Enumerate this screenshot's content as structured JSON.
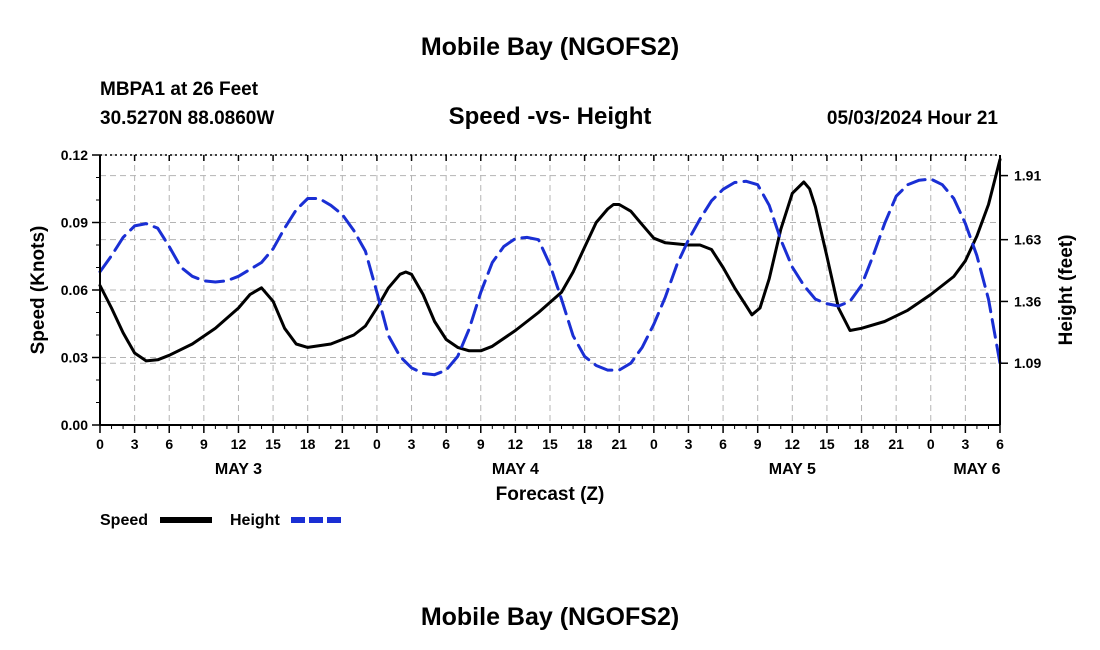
{
  "page": {
    "title": "Mobile Bay (NGOFS2)",
    "footer_title": "Mobile Bay (NGOFS2)",
    "station": "MBPA1 at 26 Feet",
    "coords": "30.5270N  88.0860W",
    "date": "05/03/2024 Hour 21"
  },
  "chart_data": {
    "type": "line",
    "title": "Speed -vs- Height",
    "xlabel": "Forecast (Z)",
    "ylabel": "Speed (Knots)",
    "y2label": "Height (feet)",
    "x_unit": "forecast hour from 00Z May 3",
    "xlim": [
      0,
      78
    ],
    "ylim": [
      0,
      0.12
    ],
    "y2lim": [
      0.82,
      2.0
    ],
    "x_ticks": [
      {
        "x": 0,
        "label": "0"
      },
      {
        "x": 3,
        "label": "3"
      },
      {
        "x": 6,
        "label": "6"
      },
      {
        "x": 9,
        "label": "9"
      },
      {
        "x": 12,
        "label": "12"
      },
      {
        "x": 15,
        "label": "15"
      },
      {
        "x": 18,
        "label": "18"
      },
      {
        "x": 21,
        "label": "21"
      },
      {
        "x": 24,
        "label": "0"
      },
      {
        "x": 27,
        "label": "3"
      },
      {
        "x": 30,
        "label": "6"
      },
      {
        "x": 33,
        "label": "9"
      },
      {
        "x": 36,
        "label": "12"
      },
      {
        "x": 39,
        "label": "15"
      },
      {
        "x": 42,
        "label": "18"
      },
      {
        "x": 45,
        "label": "21"
      },
      {
        "x": 48,
        "label": "0"
      },
      {
        "x": 51,
        "label": "3"
      },
      {
        "x": 54,
        "label": "6"
      },
      {
        "x": 57,
        "label": "9"
      },
      {
        "x": 60,
        "label": "12"
      },
      {
        "x": 63,
        "label": "15"
      },
      {
        "x": 66,
        "label": "18"
      },
      {
        "x": 69,
        "label": "21"
      },
      {
        "x": 72,
        "label": "0"
      },
      {
        "x": 75,
        "label": "3"
      },
      {
        "x": 78,
        "label": "6"
      }
    ],
    "day_labels": [
      {
        "x": 12,
        "label": "MAY 3"
      },
      {
        "x": 36,
        "label": "MAY 4"
      },
      {
        "x": 60,
        "label": "MAY 5"
      },
      {
        "x": 76,
        "label": "MAY 6"
      }
    ],
    "y_ticks": [
      {
        "v": 0.0,
        "label": "0.00"
      },
      {
        "v": 0.03,
        "label": "0.03"
      },
      {
        "v": 0.06,
        "label": "0.06"
      },
      {
        "v": 0.09,
        "label": "0.09"
      },
      {
        "v": 0.12,
        "label": "0.12"
      }
    ],
    "y2_ticks": [
      {
        "v": 1.09,
        "label": "1.09"
      },
      {
        "v": 1.36,
        "label": "1.36"
      },
      {
        "v": 1.63,
        "label": "1.63"
      },
      {
        "v": 1.91,
        "label": "1.91"
      }
    ],
    "grid": true,
    "legend": "bottom-left",
    "series": [
      {
        "name": "Speed",
        "axis": "left",
        "color": "#000000",
        "dash": "solid",
        "points": [
          [
            0,
            0.062
          ],
          [
            1,
            0.052
          ],
          [
            2,
            0.041
          ],
          [
            3,
            0.032
          ],
          [
            4,
            0.0285
          ],
          [
            5,
            0.029
          ],
          [
            6,
            0.031
          ],
          [
            8,
            0.036
          ],
          [
            10,
            0.043
          ],
          [
            12,
            0.052
          ],
          [
            13,
            0.058
          ],
          [
            14,
            0.061
          ],
          [
            15,
            0.055
          ],
          [
            16,
            0.043
          ],
          [
            17,
            0.036
          ],
          [
            18,
            0.0345
          ],
          [
            20,
            0.036
          ],
          [
            22,
            0.04
          ],
          [
            23,
            0.044
          ],
          [
            24,
            0.052
          ],
          [
            25,
            0.061
          ],
          [
            26,
            0.067
          ],
          [
            26.5,
            0.068
          ],
          [
            27,
            0.067
          ],
          [
            28,
            0.058
          ],
          [
            29,
            0.046
          ],
          [
            30,
            0.038
          ],
          [
            31,
            0.0345
          ],
          [
            32,
            0.033
          ],
          [
            33,
            0.033
          ],
          [
            34,
            0.035
          ],
          [
            36,
            0.042
          ],
          [
            38,
            0.05
          ],
          [
            40,
            0.059
          ],
          [
            41,
            0.068
          ],
          [
            42,
            0.079
          ],
          [
            43,
            0.09
          ],
          [
            44,
            0.096
          ],
          [
            44.5,
            0.098
          ],
          [
            45,
            0.098
          ],
          [
            46,
            0.095
          ],
          [
            47,
            0.089
          ],
          [
            48,
            0.083
          ],
          [
            49,
            0.081
          ],
          [
            51,
            0.08
          ],
          [
            52,
            0.08
          ],
          [
            53,
            0.078
          ],
          [
            54,
            0.07
          ],
          [
            55,
            0.061
          ],
          [
            56,
            0.053
          ],
          [
            56.5,
            0.049
          ],
          [
            57.2,
            0.052
          ],
          [
            58,
            0.065
          ],
          [
            59,
            0.087
          ],
          [
            60,
            0.103
          ],
          [
            61,
            0.108
          ],
          [
            61.5,
            0.105
          ],
          [
            62,
            0.097
          ],
          [
            63,
            0.075
          ],
          [
            64,
            0.052
          ],
          [
            65,
            0.042
          ],
          [
            66,
            0.043
          ],
          [
            68,
            0.046
          ],
          [
            70,
            0.051
          ],
          [
            72,
            0.058
          ],
          [
            74,
            0.066
          ],
          [
            75,
            0.073
          ],
          [
            76,
            0.084
          ],
          [
            77,
            0.098
          ],
          [
            78,
            0.118
          ]
        ]
      },
      {
        "name": "Height",
        "axis": "right",
        "color": "#1a2fd4",
        "dash": "dashed",
        "points": [
          [
            0,
            1.49
          ],
          [
            1,
            1.56
          ],
          [
            2,
            1.64
          ],
          [
            3,
            1.69
          ],
          [
            4,
            1.7
          ],
          [
            5,
            1.68
          ],
          [
            6,
            1.6
          ],
          [
            7,
            1.51
          ],
          [
            8,
            1.47
          ],
          [
            9,
            1.45
          ],
          [
            10,
            1.445
          ],
          [
            11,
            1.45
          ],
          [
            12,
            1.47
          ],
          [
            13,
            1.5
          ],
          [
            14,
            1.53
          ],
          [
            15,
            1.59
          ],
          [
            16,
            1.68
          ],
          [
            17,
            1.76
          ],
          [
            18,
            1.81
          ],
          [
            19,
            1.81
          ],
          [
            20,
            1.78
          ],
          [
            21,
            1.74
          ],
          [
            22,
            1.67
          ],
          [
            23,
            1.58
          ],
          [
            24,
            1.4
          ],
          [
            25,
            1.21
          ],
          [
            26,
            1.12
          ],
          [
            27,
            1.07
          ],
          [
            28,
            1.045
          ],
          [
            29,
            1.04
          ],
          [
            30,
            1.06
          ],
          [
            31,
            1.12
          ],
          [
            32,
            1.24
          ],
          [
            33,
            1.4
          ],
          [
            34,
            1.53
          ],
          [
            35,
            1.6
          ],
          [
            36,
            1.635
          ],
          [
            37,
            1.64
          ],
          [
            38,
            1.63
          ],
          [
            39,
            1.52
          ],
          [
            40,
            1.37
          ],
          [
            41,
            1.21
          ],
          [
            42,
            1.12
          ],
          [
            43,
            1.08
          ],
          [
            44,
            1.06
          ],
          [
            45,
            1.06
          ],
          [
            46,
            1.09
          ],
          [
            47,
            1.16
          ],
          [
            48,
            1.26
          ],
          [
            49,
            1.38
          ],
          [
            50,
            1.52
          ],
          [
            51,
            1.63
          ],
          [
            52,
            1.72
          ],
          [
            53,
            1.8
          ],
          [
            54,
            1.85
          ],
          [
            55,
            1.88
          ],
          [
            56,
            1.885
          ],
          [
            57,
            1.87
          ],
          [
            58,
            1.78
          ],
          [
            59,
            1.63
          ],
          [
            60,
            1.51
          ],
          [
            61,
            1.43
          ],
          [
            62,
            1.37
          ],
          [
            63,
            1.35
          ],
          [
            64,
            1.34
          ],
          [
            65,
            1.36
          ],
          [
            66,
            1.43
          ],
          [
            67,
            1.56
          ],
          [
            68,
            1.7
          ],
          [
            69,
            1.82
          ],
          [
            70,
            1.87
          ],
          [
            71,
            1.89
          ],
          [
            72,
            1.895
          ],
          [
            73,
            1.87
          ],
          [
            74,
            1.81
          ],
          [
            75,
            1.7
          ],
          [
            76,
            1.56
          ],
          [
            77,
            1.37
          ],
          [
            78,
            1.09
          ]
        ]
      }
    ]
  }
}
